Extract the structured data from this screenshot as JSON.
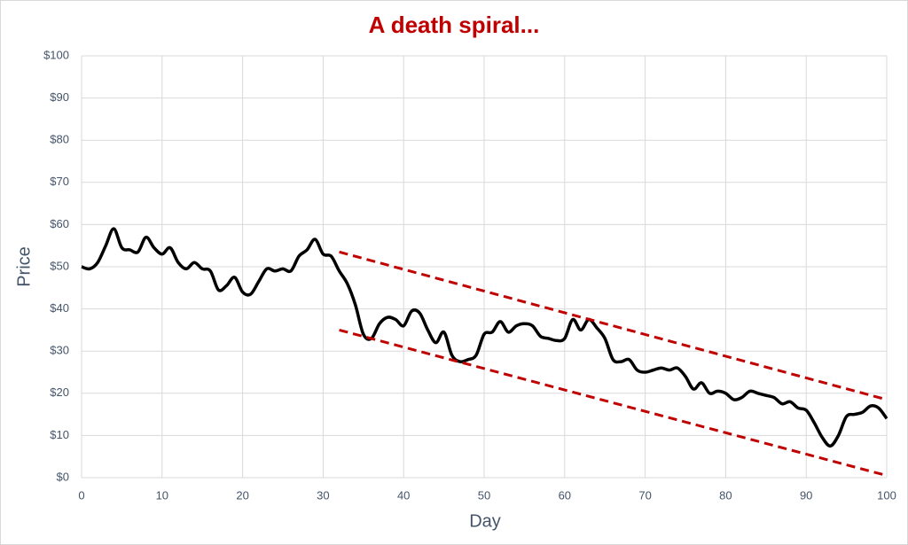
{
  "chart_data": {
    "type": "line",
    "title": "A death spiral...",
    "title_color": "#c00000",
    "x_label": "Day",
    "y_label": "Price",
    "x": [
      0,
      1,
      2,
      3,
      4,
      5,
      6,
      7,
      8,
      9,
      10,
      11,
      12,
      13,
      14,
      15,
      16,
      17,
      18,
      19,
      20,
      21,
      22,
      23,
      24,
      25,
      26,
      27,
      28,
      29,
      30,
      31,
      32,
      33,
      34,
      35,
      36,
      37,
      38,
      39,
      40,
      41,
      42,
      43,
      44,
      45,
      46,
      47,
      48,
      49,
      50,
      51,
      52,
      53,
      54,
      55,
      56,
      57,
      58,
      59,
      60,
      61,
      62,
      63,
      64,
      65,
      66,
      67,
      68,
      69,
      70,
      71,
      72,
      73,
      74,
      75,
      76,
      77,
      78,
      79,
      80,
      81,
      82,
      83,
      84,
      85,
      86,
      87,
      88,
      89,
      90,
      91,
      92,
      93,
      94,
      95,
      96,
      97,
      98,
      99,
      100
    ],
    "series": [
      {
        "color": "#000000",
        "values": [
          50,
          49.5,
          51,
          55,
          59,
          54.5,
          54,
          53.5,
          57,
          54.5,
          53,
          54.5,
          51,
          49.5,
          51,
          49.5,
          49,
          44.5,
          45.5,
          47.5,
          44,
          43.5,
          46.5,
          49.5,
          49,
          49.5,
          49,
          52.5,
          54,
          56.5,
          53,
          52.5,
          49,
          46,
          41,
          34,
          33,
          36.5,
          38,
          37.5,
          36,
          39.5,
          39,
          35,
          32,
          34.5,
          29,
          27.5,
          28,
          29,
          34,
          34.5,
          37,
          34.5,
          36,
          36.5,
          36,
          33.5,
          33,
          32.5,
          33,
          37.5,
          35,
          37.5,
          35.5,
          33,
          28,
          27.5,
          28,
          25.5,
          25,
          25.5,
          26,
          25.5,
          26,
          24,
          21,
          22.5,
          20,
          20.5,
          20,
          18.5,
          19,
          20.5,
          20,
          19.5,
          19,
          17.5,
          18,
          16.5,
          16,
          13,
          9.5,
          7.5,
          10,
          14.5,
          15,
          15.5,
          17,
          16.5,
          14
        ]
      }
    ],
    "trend_lines": [
      {
        "color": "#c00000",
        "x": [
          32,
          100
        ],
        "values": [
          53.5,
          18.5
        ]
      },
      {
        "color": "#c00000",
        "x": [
          32,
          100
        ],
        "values": [
          35,
          0.5
        ]
      }
    ],
    "xlim": [
      0,
      100
    ],
    "ylim": [
      0,
      100
    ],
    "xticks": [
      0,
      10,
      20,
      30,
      40,
      50,
      60,
      70,
      80,
      90,
      100
    ],
    "yticks": [
      {
        "value": 0,
        "label": "$0"
      },
      {
        "value": 10,
        "label": "$10"
      },
      {
        "value": 20,
        "label": "$20"
      },
      {
        "value": 30,
        "label": "$30"
      },
      {
        "value": 40,
        "label": "$40"
      },
      {
        "value": 50,
        "label": "$50"
      },
      {
        "value": 60,
        "label": "$60"
      },
      {
        "value": 70,
        "label": "$70"
      },
      {
        "value": 80,
        "label": "$80"
      },
      {
        "value": 90,
        "label": "$90"
      },
      {
        "value": 100,
        "label": "$100"
      }
    ],
    "grid": true
  }
}
